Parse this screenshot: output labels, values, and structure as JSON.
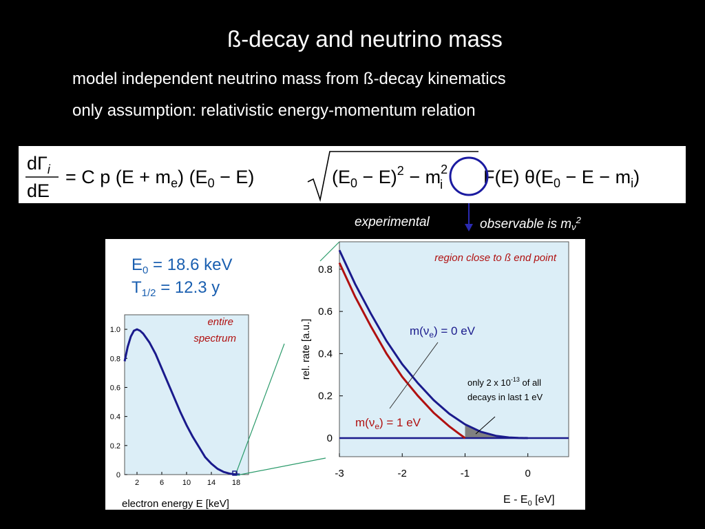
{
  "slide": {
    "title": "ß-decay and neutrino mass",
    "bullet1": "model independent neutrino mass from ß-decay kinematics",
    "bullet2": "only assumption: relativistic energy-momentum relation"
  },
  "formula": {
    "lhs_num": "dΓ",
    "lhs_num_sub": "i",
    "lhs_den": "dE",
    "rhs_pre": "= C p (E + m",
    "rhs_pre_sub": "e",
    "rhs_mid": ") (E",
    "rhs_mid_sub": "0",
    "rhs_mid2": " − E)",
    "sqrt_a": "(E",
    "sqrt_a_sub": "0",
    "sqrt_b": " − E)",
    "sqrt_sup": "2",
    "sqrt_c": " − m",
    "sqrt_c_sup": "2",
    "sqrt_c_sub": "i",
    "rhs_post": "F(E) θ(E",
    "rhs_post_sub": "0",
    "rhs_post2": " − E − m",
    "rhs_post2_sub": "i",
    "rhs_end": ")"
  },
  "callout": {
    "left": "experimental",
    "right_pre": "observable is m",
    "right_sub": "ν",
    "right_sup": "2"
  },
  "params": {
    "e0_pre": "E",
    "e0_sub": "0",
    "e0_post": " = 18.6 keV",
    "t_pre": "T",
    "t_sub": "1/2",
    "t_post": " = 12.3 y"
  },
  "chart_data": [
    {
      "type": "line",
      "annotation": "entire spectrum",
      "annotation_line1": "entire",
      "annotation_line2": "spectrum",
      "xlabel": "electron energy E [keV]",
      "xticks": [
        2,
        6,
        10,
        14,
        18
      ],
      "xtick_labels": [
        "2",
        "6",
        "10",
        "14",
        "18"
      ],
      "yticks": [
        0,
        0.2,
        0.4,
        0.6,
        0.8,
        1.0
      ],
      "ytick_labels": [
        "0",
        "0.2",
        "0.4",
        "0.6",
        "0.8",
        "1.0"
      ],
      "xlim": [
        0,
        20
      ],
      "ylim": [
        0,
        1.1
      ],
      "series": [
        {
          "x": [
            0,
            0.5,
            1,
            1.5,
            2,
            2.5,
            3,
            4,
            5,
            6,
            7,
            8,
            9,
            10,
            11,
            12,
            13,
            14,
            15,
            16,
            17,
            18,
            18.6
          ],
          "y": [
            0.78,
            0.88,
            0.95,
            0.99,
            1.0,
            0.99,
            0.97,
            0.91,
            0.83,
            0.73,
            0.63,
            0.53,
            0.43,
            0.34,
            0.26,
            0.19,
            0.12,
            0.075,
            0.04,
            0.018,
            0.006,
            0.001,
            0
          ],
          "color": "#1a1a8c"
        }
      ]
    },
    {
      "type": "line",
      "title": "region close to ß end point",
      "ylabel": "rel. rate [a.u.]",
      "xlabel_pre": "E - E",
      "xlabel_sub": "0",
      "xlabel_post": " [eV]",
      "xticks": [
        -3,
        -2,
        -1,
        0
      ],
      "xtick_labels": [
        "-3",
        "-2",
        "-1",
        "0"
      ],
      "yticks": [
        0,
        0.2,
        0.4,
        0.6,
        0.8
      ],
      "ytick_labels": [
        "0",
        "0.2",
        "0.4",
        "0.6",
        "0.8"
      ],
      "xlim": [
        -3,
        0.65
      ],
      "ylim": [
        0,
        0.93
      ],
      "series": [
        {
          "label_pre": "m(ν",
          "label_sub": "e",
          "label_post": ") = 0 eV",
          "x": [
            -3.0,
            -2.75,
            -2.5,
            -2.25,
            -2.0,
            -1.75,
            -1.5,
            -1.25,
            -1.0,
            -0.75,
            -0.5,
            -0.3,
            -0.15,
            0.0
          ],
          "y": [
            0.89,
            0.73,
            0.59,
            0.46,
            0.35,
            0.26,
            0.18,
            0.115,
            0.065,
            0.03,
            0.01,
            0.003,
            0.0005,
            0
          ],
          "color": "#1a1a8c"
        },
        {
          "label_pre": "m(ν",
          "label_sub": "e",
          "label_post": ") = 1 eV",
          "x": [
            -3.0,
            -2.75,
            -2.5,
            -2.25,
            -2.0,
            -1.75,
            -1.5,
            -1.25,
            -1.1,
            -1.0
          ],
          "y": [
            0.83,
            0.67,
            0.53,
            0.4,
            0.29,
            0.2,
            0.12,
            0.055,
            0.022,
            0
          ],
          "color": "#b01010"
        }
      ],
      "annotation_line1_pre": "only 2 x 10",
      "annotation_line1_sup": "-13",
      "annotation_line1_post": " of all",
      "annotation_line2": "decays in last 1 eV"
    }
  ]
}
